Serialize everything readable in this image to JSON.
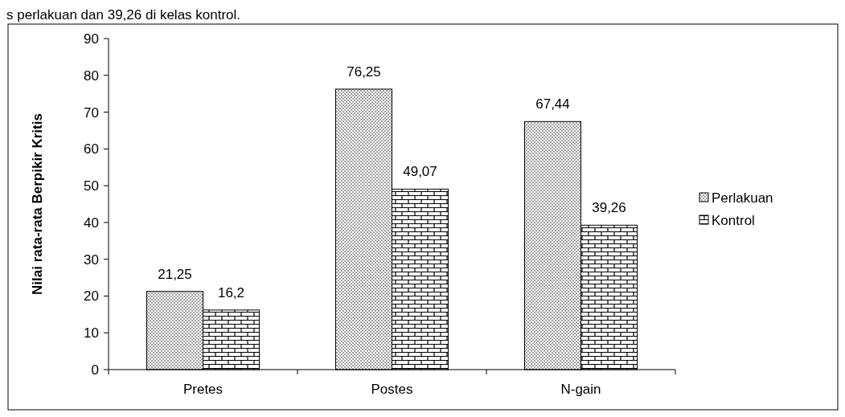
{
  "chart_data": {
    "type": "bar",
    "ylabel": "Nilai rata-rata Berpikir Kritis",
    "categories": [
      "Pretes",
      "Postes",
      "N-gain"
    ],
    "series": [
      {
        "name": "Perlakuan",
        "color": "#000000",
        "values": [
          21.25,
          76.25,
          67.44
        ],
        "value_labels": [
          "21,25",
          "76,25",
          "67,44"
        ]
      },
      {
        "name": "Kontrol",
        "color": "#000000",
        "values": [
          16.2,
          49.07,
          39.26
        ],
        "value_labels": [
          "16,2",
          "49,07",
          "39,26"
        ]
      }
    ],
    "ylim": [
      0,
      90
    ],
    "yticks": [
      0,
      10,
      20,
      30,
      40,
      50,
      60,
      70,
      80,
      90
    ],
    "grid": false,
    "legend": "right",
    "annotations": [
      "s perlakuan dan 39,26 di kelas kontrol."
    ]
  }
}
